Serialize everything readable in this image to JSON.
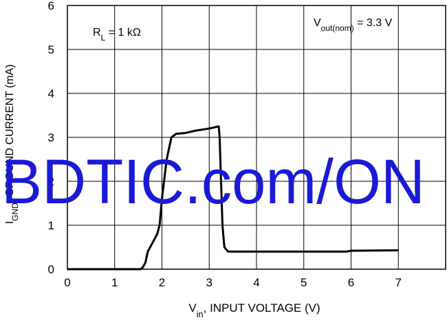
{
  "chart_data": {
    "type": "line",
    "xlabel": [
      "V",
      "in",
      ", INPUT VOLTAGE (V)"
    ],
    "ylabel": [
      "I",
      "GND",
      ", GROUND CURRENT (mA)"
    ],
    "annotations": [
      [
        "R",
        "L",
        " = 1 kΩ"
      ],
      [
        "V",
        "out(nom)",
        " = 3.3 V"
      ]
    ],
    "watermark": "BDTIC.com/ON",
    "xlim": [
      0,
      8
    ],
    "ylim": [
      0,
      6
    ],
    "xticks": [
      0,
      1,
      2,
      3,
      4,
      5,
      6,
      7
    ],
    "yticks": [
      0,
      1,
      2,
      3,
      4,
      5,
      6
    ],
    "grid": true,
    "series": [
      {
        "color": "#000000",
        "x": [
          0,
          1.55,
          1.6,
          1.65,
          1.7,
          1.8,
          1.9,
          1.95,
          2.0,
          2.1,
          2.2,
          2.3,
          2.5,
          2.7,
          3.0,
          3.2,
          3.22,
          3.28,
          3.32,
          3.4,
          4,
          5,
          5.9,
          6,
          7
        ],
        "values": [
          0,
          0,
          0.05,
          0.15,
          0.4,
          0.6,
          0.8,
          1.0,
          1.6,
          2.5,
          3.0,
          3.08,
          3.1,
          3.15,
          3.2,
          3.25,
          3.0,
          1.0,
          0.5,
          0.4,
          0.4,
          0.4,
          0.4,
          0.42,
          0.43
        ]
      }
    ]
  }
}
